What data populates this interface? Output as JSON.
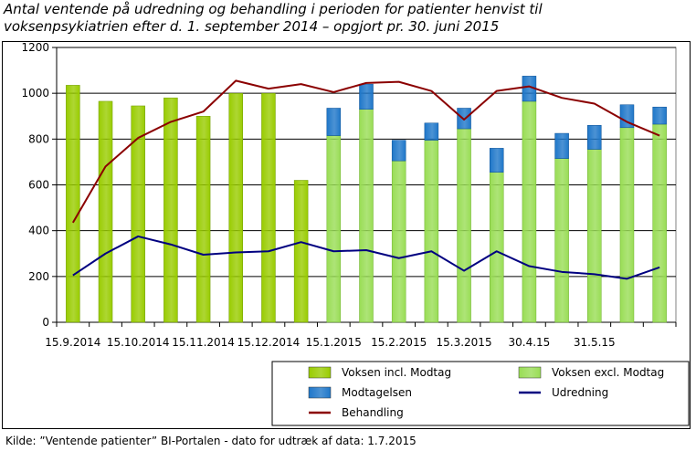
{
  "title_lines": [
    "Antal ventende på udredning og behandling i perioden for patienter henvist til",
    "voksenpsykiatrien efter d. 1. september 2014 – opgjort pr. 30. juni 2015"
  ],
  "source": "Kilde: ”Ventende patienter” BI-Portalen - dato for udtræk af data: 1.7.2015",
  "chart_data": {
    "type": "bar",
    "title": "Antal ventende på udredning og behandling i perioden for patienter henvist til voksenpsykiatrien efter d. 1. september 2014 – opgjort pr. 30. juni 2015",
    "ylim": [
      0,
      1200
    ],
    "yticks": [
      0,
      200,
      400,
      600,
      800,
      1000,
      1200
    ],
    "grid": true,
    "legend_position": "bottom-right",
    "x_tick_labels": [
      {
        "index": 0,
        "label": "15.9.2014"
      },
      {
        "index": 2,
        "label": "15.10.2014"
      },
      {
        "index": 4,
        "label": "15.11.2014"
      },
      {
        "index": 6,
        "label": "15.12.2014"
      },
      {
        "index": 8,
        "label": "15.1.2015"
      },
      {
        "index": 10,
        "label": "15.2.2015"
      },
      {
        "index": 12,
        "label": "15.3.2015"
      },
      {
        "index": 14,
        "label": "30.4.15"
      },
      {
        "index": 16,
        "label": "31.5.15"
      }
    ],
    "category_count": 19,
    "series": [
      {
        "name": "Voksen incl. Modtag",
        "kind": "bar",
        "color": "#99cc00",
        "values": [
          1035,
          965,
          945,
          980,
          900,
          1000,
          1000,
          620,
          null,
          null,
          null,
          null,
          null,
          null,
          null,
          null,
          null,
          null,
          null
        ]
      },
      {
        "name": "Voksen excl. Modtag",
        "kind": "bar",
        "color": "#99dd55",
        "values": [
          null,
          null,
          null,
          null,
          null,
          null,
          null,
          null,
          815,
          930,
          705,
          795,
          845,
          655,
          965,
          715,
          755,
          850,
          865
        ]
      },
      {
        "name": "Modtagelsen",
        "kind": "bar-stack",
        "color": "#1f77c9",
        "values": [
          null,
          null,
          null,
          null,
          null,
          null,
          null,
          null,
          120,
          110,
          90,
          75,
          90,
          105,
          110,
          110,
          105,
          100,
          75
        ]
      },
      {
        "name": "Udredning",
        "kind": "line",
        "color": "#000080",
        "values": [
          205,
          300,
          375,
          340,
          295,
          305,
          310,
          350,
          310,
          315,
          280,
          310,
          225,
          310,
          245,
          220,
          210,
          190,
          240
        ]
      },
      {
        "name": "Behandling",
        "kind": "line",
        "color": "#8b0000",
        "values": [
          435,
          680,
          805,
          875,
          920,
          1055,
          1020,
          1040,
          1005,
          1045,
          1050,
          1010,
          885,
          1010,
          1030,
          980,
          955,
          875,
          815
        ]
      }
    ]
  }
}
